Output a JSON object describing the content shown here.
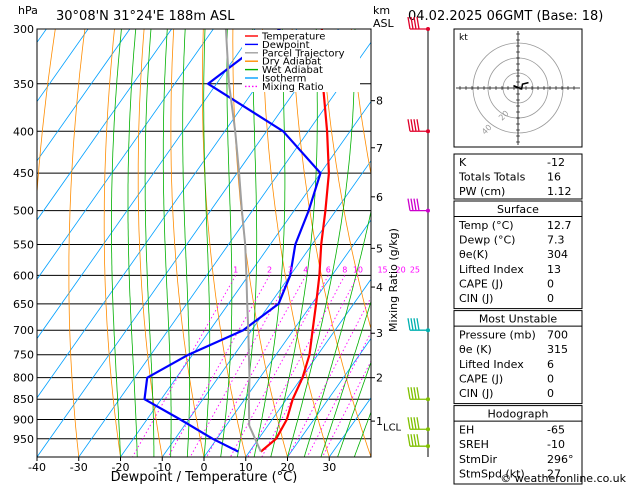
{
  "header": {
    "unit_pressure": "hPa",
    "location": "30°08'N  31°24'E  188m  ASL",
    "unit_km": "km",
    "unit_asl": "ASL",
    "datetime": "04.02.2025  06GMT  (Base: 18)"
  },
  "legend": [
    {
      "label": "Temperature",
      "color": "#ff0000",
      "style": "solid"
    },
    {
      "label": "Dewpoint",
      "color": "#0000ff",
      "style": "solid"
    },
    {
      "label": "Parcel Trajectory",
      "color": "#a0a0a0",
      "style": "solid"
    },
    {
      "label": "Dry Adiabat",
      "color": "#ff8c00",
      "style": "solid"
    },
    {
      "label": "Wet Adiabat",
      "color": "#00b000",
      "style": "solid"
    },
    {
      "label": "Isotherm",
      "color": "#00a0ff",
      "style": "solid"
    },
    {
      "label": "Mixing Ratio",
      "color": "#ff00ff",
      "style": "dotted"
    }
  ],
  "chart_data": {
    "type": "line",
    "xlabel": "Dewpoint / Temperature (°C)",
    "ylabel_right": "Mixing Ratio (g/kg)",
    "xlim": [
      -40,
      40
    ],
    "pressure_range": [
      1000,
      300
    ],
    "x_ticks": [
      -40,
      -30,
      -20,
      -10,
      0,
      10,
      20,
      30
    ],
    "pressure_levels": [
      300,
      350,
      400,
      450,
      500,
      550,
      600,
      650,
      700,
      750,
      800,
      850,
      900,
      950
    ],
    "km_labels": [
      {
        "label": "8",
        "p": 367
      },
      {
        "label": "7",
        "p": 419
      },
      {
        "label": "6",
        "p": 481
      },
      {
        "label": "5",
        "p": 556
      },
      {
        "label": "4",
        "p": 620
      },
      {
        "label": "3",
        "p": 706
      },
      {
        "label": "2",
        "p": 800
      },
      {
        "label": "1",
        "p": 904
      }
    ],
    "lcl_label": "LCL",
    "lcl_p": 915,
    "mixing_ratio_labels": [
      "1",
      "2",
      "3",
      "4",
      "6",
      "8",
      "10",
      "15",
      "20",
      "25"
    ],
    "skew_per_log_p": 60,
    "series": [
      {
        "name": "Temperature",
        "color": "#ff0000",
        "points": [
          [
            985,
            12.7
          ],
          [
            950,
            14.2
          ],
          [
            900,
            13.5
          ],
          [
            850,
            11.5
          ],
          [
            800,
            10.2
          ],
          [
            750,
            8.0
          ],
          [
            700,
            4.6
          ],
          [
            650,
            1.0
          ],
          [
            600,
            -3.0
          ],
          [
            550,
            -7.8
          ],
          [
            500,
            -12.5
          ],
          [
            450,
            -18.0
          ],
          [
            400,
            -25.5
          ],
          [
            350,
            -34.5
          ],
          [
            300,
            -44.0
          ]
        ]
      },
      {
        "name": "Dewpoint",
        "color": "#0000ff",
        "points": [
          [
            985,
            7.3
          ],
          [
            950,
            -1.0
          ],
          [
            900,
            -12.0
          ],
          [
            850,
            -24.0
          ],
          [
            800,
            -27.0
          ],
          [
            750,
            -21.0
          ],
          [
            700,
            -12.0
          ],
          [
            650,
            -8.0
          ],
          [
            600,
            -10.0
          ],
          [
            550,
            -14.0
          ],
          [
            500,
            -16.5
          ],
          [
            450,
            -20.0
          ],
          [
            400,
            -36.0
          ],
          [
            350,
            -62.0
          ],
          [
            300,
            -54.0
          ]
        ]
      },
      {
        "name": "Parcel Trajectory",
        "color": "#a0a0a0",
        "points": [
          [
            985,
            12.7
          ],
          [
            915,
            5.5
          ],
          [
            850,
            1.0
          ],
          [
            800,
            -2.5
          ],
          [
            750,
            -6.5
          ],
          [
            700,
            -10.8
          ],
          [
            650,
            -15.5
          ],
          [
            600,
            -20.5
          ],
          [
            550,
            -26.0
          ],
          [
            500,
            -32.5
          ],
          [
            450,
            -39.5
          ],
          [
            400,
            -47.5
          ],
          [
            350,
            -57.0
          ],
          [
            300,
            -67.0
          ]
        ]
      }
    ]
  },
  "hodograph": {
    "label": "kt",
    "ring_labels": [
      "20",
      "40"
    ],
    "points": [
      [
        0,
        0
      ],
      [
        -1.5,
        0.8
      ],
      [
        1.2,
        -0.3
      ],
      [
        1.5,
        1.3
      ],
      [
        3.5,
        1.8
      ]
    ]
  },
  "wind_barbs": [
    {
      "p": 300,
      "color": "#e0002a"
    },
    {
      "p": 400,
      "color": "#e0002a"
    },
    {
      "p": 500,
      "color": "#cc00cc"
    },
    {
      "p": 700,
      "color": "#00b0b0"
    },
    {
      "p": 850,
      "color": "#80c000"
    },
    {
      "p": 925,
      "color": "#80c000"
    },
    {
      "p": 970,
      "color": "#80c000"
    }
  ],
  "indices": {
    "rows": [
      {
        "k": "K",
        "v": "-12"
      },
      {
        "k": "Totals Totals",
        "v": "16"
      },
      {
        "k": "PW (cm)",
        "v": "1.12"
      }
    ]
  },
  "surface": {
    "title": "Surface",
    "rows": [
      {
        "k": "Temp (°C)",
        "v": "12.7"
      },
      {
        "k": "Dewp (°C)",
        "v": "7.3"
      },
      {
        "k": "θe(K)",
        "v": "304"
      },
      {
        "k": "Lifted Index",
        "v": "13"
      },
      {
        "k": "CAPE (J)",
        "v": "0"
      },
      {
        "k": "CIN (J)",
        "v": "0"
      }
    ]
  },
  "most_unstable": {
    "title": "Most Unstable",
    "rows": [
      {
        "k": "Pressure (mb)",
        "v": "700"
      },
      {
        "k": "θe (K)",
        "v": "315"
      },
      {
        "k": "Lifted Index",
        "v": "6"
      },
      {
        "k": "CAPE (J)",
        "v": "0"
      },
      {
        "k": "CIN (J)",
        "v": "0"
      }
    ]
  },
  "hodo_table": {
    "title": "Hodograph",
    "rows": [
      {
        "k": "EH",
        "v": "-65"
      },
      {
        "k": "SREH",
        "v": "-10"
      },
      {
        "k": "StmDir",
        "v": "296°"
      },
      {
        "k": "StmSpd (kt)",
        "v": "27"
      }
    ]
  },
  "footer": {
    "credit": "© weatheronline.co.uk"
  }
}
